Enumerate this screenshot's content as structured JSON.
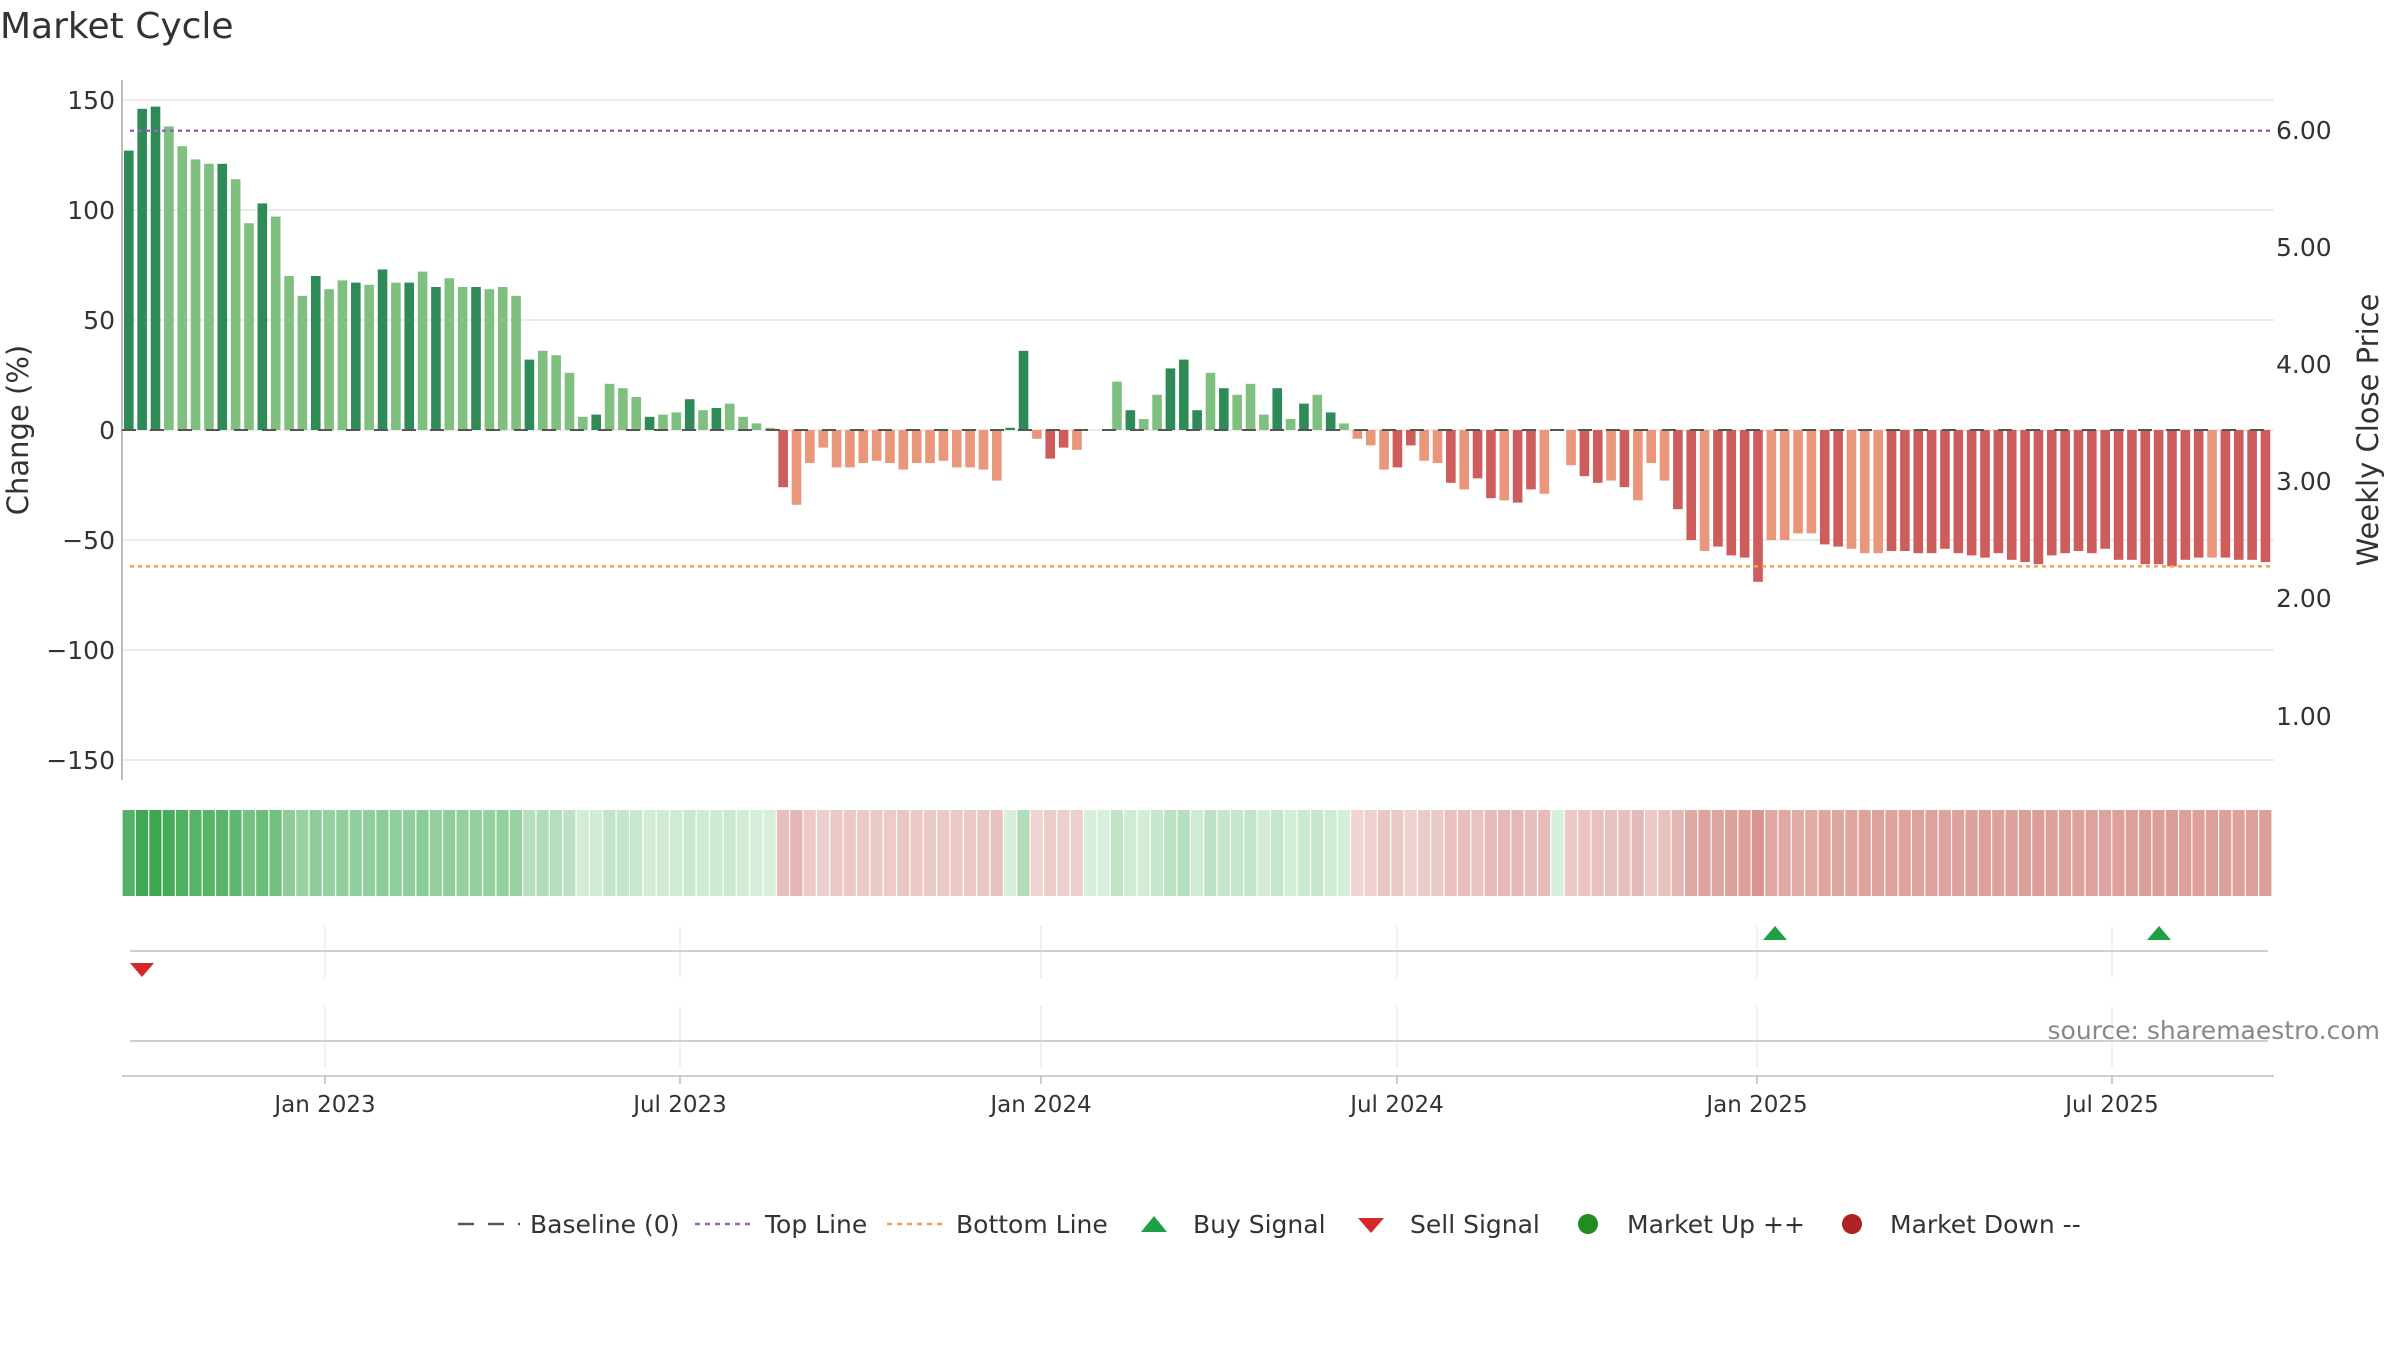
{
  "title": "Market Cycle",
  "source": "source: sharemaestro.com",
  "colors": {
    "up_strong": "#2e8b57",
    "up_light": "#7fbf7f",
    "down_strong": "#cd5c5c",
    "down_light": "#e9967a",
    "top_line": "#9467bd",
    "bottom_line": "#f0a050",
    "baseline": "#555555",
    "buy": "#1fa046",
    "sell": "#d62728",
    "market_up": "#228b22",
    "market_down": "#b22222"
  },
  "chart_data": {
    "type": "bar",
    "title": "Market Cycle",
    "ylabel": "Change (%)",
    "y2label": "Weekly Close Price",
    "ylim": [
      -150,
      150
    ],
    "yticks": [
      "150",
      "100",
      "50",
      "0",
      "−50",
      "−100",
      "−150"
    ],
    "y2ticks": [
      "6.00",
      "5.00",
      "4.00",
      "3.00",
      "2.00",
      "1.00"
    ],
    "xticks": [
      "Jan 2023",
      "Jul 2023",
      "Jan 2024",
      "Jul 2024",
      "Jan 2025",
      "Jul 2025"
    ],
    "top_line": 136,
    "bottom_line": -62,
    "grid": true,
    "legend_position": "bottom",
    "values": [
      127,
      146,
      147,
      138,
      129,
      123,
      121,
      121,
      114,
      94,
      103,
      97,
      70,
      61,
      70,
      64,
      68,
      67,
      66,
      73,
      67,
      67,
      72,
      65,
      69,
      65,
      65,
      64,
      65,
      61,
      32,
      36,
      34,
      26,
      6,
      7,
      21,
      19,
      15,
      6,
      7,
      8,
      14,
      9,
      10,
      12,
      6,
      3,
      1,
      -26,
      -34,
      -15,
      -8,
      -17,
      -17,
      -15,
      -14,
      -15,
      -18,
      -15,
      -15,
      -14,
      -17,
      -17,
      -18,
      -23,
      1,
      36,
      -4,
      -13,
      -8,
      -9,
      0,
      0,
      22,
      9,
      5,
      16,
      28,
      32,
      9,
      26,
      19,
      16,
      21,
      7,
      19,
      5,
      12,
      16,
      8,
      3,
      -4,
      -7,
      -18,
      -17,
      -7,
      -14,
      -15,
      -24,
      -27,
      -22,
      -31,
      -32,
      -33,
      -27,
      -29,
      0,
      -16,
      -21,
      -24,
      -23,
      -26,
      -32,
      -15,
      -23,
      -36,
      -50,
      -55,
      -53,
      -57,
      -58,
      -69,
      -50,
      -50,
      -47,
      -47,
      -52,
      -53,
      -54,
      -56,
      -56,
      -55,
      -55,
      -56,
      -56,
      -54,
      -56,
      -57,
      -58,
      -56,
      -59,
      -60,
      -61,
      -57,
      -56,
      -55,
      -56,
      -54,
      -59,
      -59,
      -61,
      -61,
      -62,
      -59,
      -58,
      -58,
      -58,
      -59,
      -59,
      -60
    ],
    "shades": "SSSLLLLSLLSLLLSLLSLSLSLSLLSLLLSLLLLSLLLSLLSLSLLLLSLLLLLLLLLLLLLLLLSSLSSLLLLSLLSSSLSLLLSLSLSLLLLSSLLSLSSLSSLLLSSLSLLLSSLSSSSLLLLSSLLLSSSSSSSSSSSSSSSSSSSSSSSSLSSSSLLLLSSSLSSLSSLSSLSSLSS",
    "buy_signals": [
      "Jan 2025",
      "Jul 2025"
    ],
    "sell_signals": [
      "Oct 2022"
    ],
    "legend": [
      "Baseline (0)",
      "Top Line",
      "Bottom Line",
      "Buy Signal",
      "Sell Signal",
      "Market Up ++",
      "Market Down --"
    ]
  }
}
